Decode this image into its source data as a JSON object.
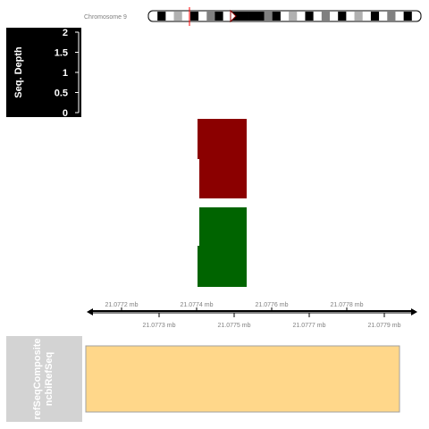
{
  "ideogram": {
    "label": "Chromosome 9",
    "bands": [
      {
        "c": "#ffffff"
      },
      {
        "c": "#000000"
      },
      {
        "c": "#ffffff"
      },
      {
        "c": "#b0b0b0"
      },
      {
        "c": "#ffffff"
      },
      {
        "c": "#000000"
      },
      {
        "c": "#ffffff"
      },
      {
        "c": "#808080"
      },
      {
        "c": "#000000"
      },
      {
        "c": "#ffffff"
      },
      {
        "c": "#000000"
      },
      {
        "c": "#000000"
      },
      {
        "c": "#000000"
      },
      {
        "c": "#000000"
      },
      {
        "c": "#808080"
      },
      {
        "c": "#000000"
      },
      {
        "c": "#ffffff"
      },
      {
        "c": "#b0b0b0"
      },
      {
        "c": "#ffffff"
      },
      {
        "c": "#000000"
      },
      {
        "c": "#ffffff"
      },
      {
        "c": "#808080"
      },
      {
        "c": "#ffffff"
      },
      {
        "c": "#000000"
      },
      {
        "c": "#ffffff"
      },
      {
        "c": "#b0b0b0"
      },
      {
        "c": "#ffffff"
      },
      {
        "c": "#000000"
      },
      {
        "c": "#ffffff"
      },
      {
        "c": "#808080"
      },
      {
        "c": "#ffffff"
      },
      {
        "c": "#000000"
      },
      {
        "c": "#ffffff"
      }
    ],
    "marker_color": "#ff0000"
  },
  "depth_track": {
    "title": "Seq. Depth",
    "ticks": [
      "2",
      "1.5",
      "1",
      "0.5",
      "0"
    ]
  },
  "strand_track": {
    "plus_color": "#8b0000",
    "minus_color": "#006400"
  },
  "genome_axis": {
    "upper_labels": [
      "21.0772 mb",
      "21.0774 mb",
      "21.0776 mb",
      "21.0778 mb"
    ],
    "lower_labels": [
      "21.0773 mb",
      "21.0775 mb",
      "21.0777 mb",
      "21.0779 mb"
    ]
  },
  "refseq_track": {
    "title_line1": "refSeqComposite",
    "title_line2": "ncbiRefSeq",
    "feature_color": "#ffd78a"
  }
}
